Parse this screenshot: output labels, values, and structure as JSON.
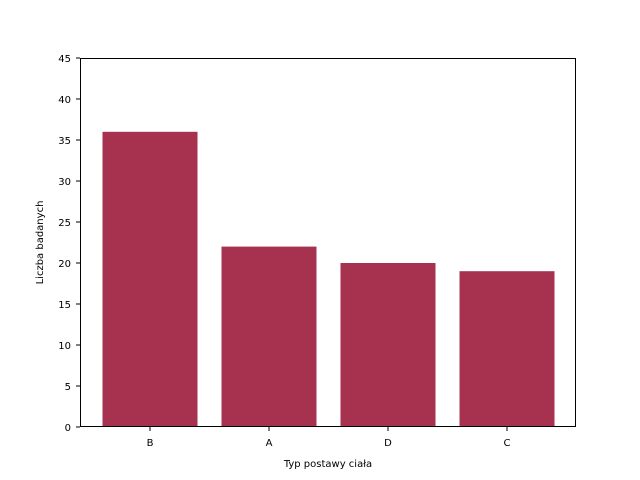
{
  "chart_data": {
    "type": "bar",
    "categories": [
      "B",
      "A",
      "D",
      "C"
    ],
    "values": [
      36,
      22,
      20,
      19
    ],
    "title": "",
    "xlabel": "Typ postawy ciała",
    "ylabel": "Liczba badanych",
    "ylim": [
      0,
      45
    ],
    "yticks": [
      0,
      5,
      10,
      15,
      20,
      25,
      30,
      35,
      40,
      45
    ],
    "grid": false,
    "bar_color": "#a63250"
  }
}
